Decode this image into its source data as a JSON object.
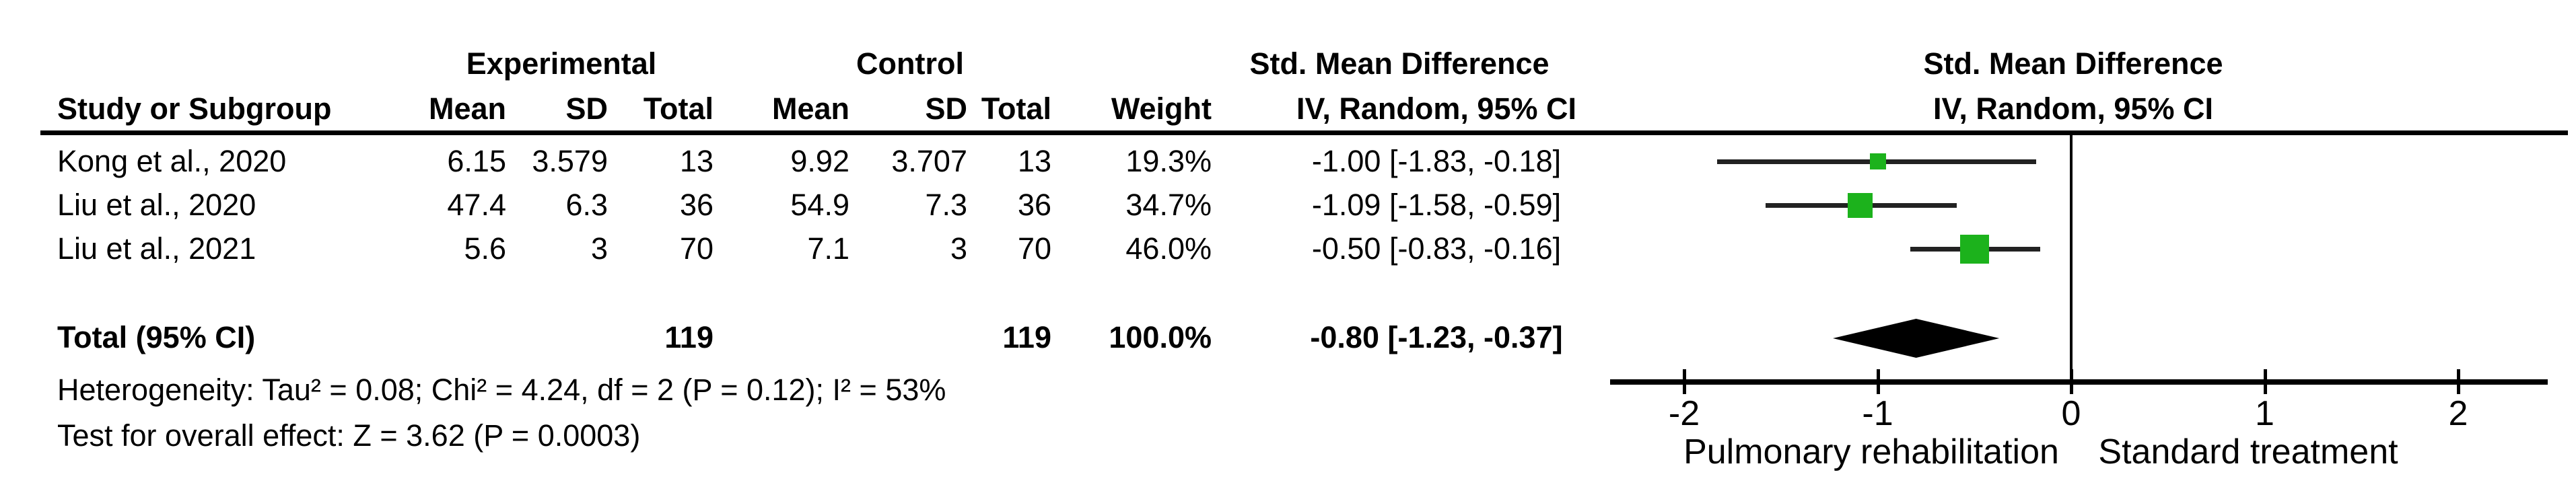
{
  "colors": {
    "marker_green": "#1cb21c",
    "ci_line": "#222222",
    "axis_black": "#000000"
  },
  "table": {
    "group_header": {
      "experimental": "Experimental",
      "control": "Control",
      "smd": "Std. Mean Difference"
    },
    "columns": {
      "study": "Study or Subgroup",
      "mean": "Mean",
      "sd": "SD",
      "total": "Total",
      "weight": "Weight",
      "ci": "IV, Random, 95% CI"
    },
    "rows": [
      {
        "study": "Kong et al., 2020",
        "mean_e": "6.15",
        "sd_e": "3.579",
        "total_e": "13",
        "mean_c": "9.92",
        "sd_c": "3.707",
        "total_c": "13",
        "weight": "19.3%",
        "estimate": "-1.00 [-1.83, -0.18]"
      },
      {
        "study": "Liu et al., 2020",
        "mean_e": "47.4",
        "sd_e": "6.3",
        "total_e": "36",
        "mean_c": "54.9",
        "sd_c": "7.3",
        "total_c": "36",
        "weight": "34.7%",
        "estimate": "-1.09 [-1.58, -0.59]"
      },
      {
        "study": "Liu et al., 2021",
        "mean_e": "5.6",
        "sd_e": "3",
        "total_e": "70",
        "mean_c": "7.1",
        "sd_c": "3",
        "total_c": "70",
        "weight": "46.0%",
        "estimate": "-0.50 [-0.83, -0.16]"
      }
    ],
    "total_row": {
      "label": "Total (95% CI)",
      "total_e": "119",
      "total_c": "119",
      "weight": "100.0%",
      "estimate": "-0.80 [-1.23, -0.37]"
    },
    "footnotes": {
      "heterogeneity": "Heterogeneity: Tau² = 0.08; Chi² = 4.24, df = 2 (P = 0.12); I² = 53%",
      "overall_effect": "Test for overall effect: Z = 3.62 (P = 0.0003)"
    }
  },
  "chart_data": {
    "type": "scatter",
    "subtype": "forest-plot",
    "title": "Std. Mean Difference",
    "subtitle": "IV, Random, 95% CI",
    "effect_measure": "Std. Mean Difference, IV, Random, 95% CI",
    "xlim": [
      -2.4,
      2.45
    ],
    "x_ticks": [
      -2,
      -1,
      0,
      1,
      2
    ],
    "xlabel_left": "Pulmonary rehabilitation",
    "xlabel_right": "Standard treatment",
    "grid": false,
    "points": [
      {
        "label": "Kong et al., 2020",
        "value": -1.0,
        "ci_low": -1.83,
        "ci_high": -0.18,
        "weight_pct": 19.3,
        "marker_size": 24
      },
      {
        "label": "Liu et al., 2020",
        "value": -1.09,
        "ci_low": -1.58,
        "ci_high": -0.59,
        "weight_pct": 34.7,
        "marker_size": 37
      },
      {
        "label": "Liu et al., 2021",
        "value": -0.5,
        "ci_low": -0.83,
        "ci_high": -0.16,
        "weight_pct": 46.0,
        "marker_size": 43
      }
    ],
    "diamond": {
      "label": "Total (95% CI)",
      "value": -0.8,
      "ci_low": -1.23,
      "ci_high": -0.37
    }
  }
}
